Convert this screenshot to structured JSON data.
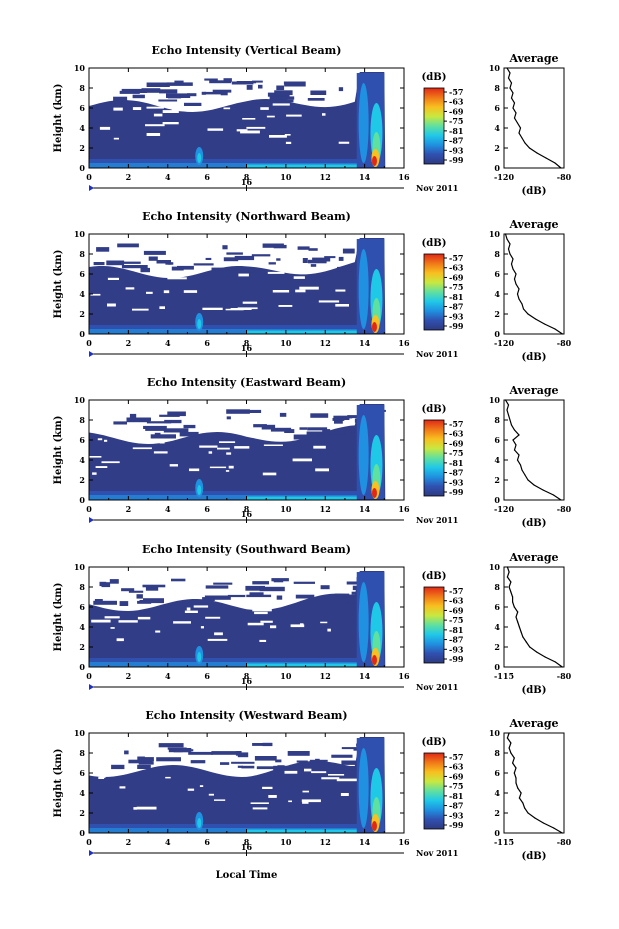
{
  "colors": {
    "background": "#313d86",
    "colorbar_stops": [
      "#2e3a80",
      "#3050b0",
      "#2090e0",
      "#20c8e8",
      "#60e0a0",
      "#c8e840",
      "#f8c020",
      "#f07818",
      "#e02818"
    ],
    "line": "#000000"
  },
  "x_ticks": [
    "0",
    "2",
    "4",
    "6",
    "8",
    "10",
    "12",
    "14",
    "16"
  ],
  "y_ticks": [
    "0",
    "2",
    "4",
    "6",
    "8",
    "10"
  ],
  "colorbar_unit": "(dB)",
  "colorbar_ticks": [
    "-57",
    "-63",
    "-69",
    "-75",
    "-81",
    "-87",
    "-93",
    "-99"
  ],
  "avg_title": "Average",
  "avg_unit": "(dB)",
  "ylabel": "Height (km)",
  "date_day": "16",
  "date_label": "Nov 2011",
  "xlabel": "Local Time",
  "chart_data": [
    {
      "type": "heatmap",
      "title": "Echo Intensity (Vertical Beam)",
      "xlim": [
        0,
        16
      ],
      "ylim": [
        0,
        10
      ],
      "avg_xlim": [
        -120,
        -80
      ],
      "avg_xticks": [
        "-120",
        "-80"
      ],
      "avg_profile": {
        "height": [
          0,
          0.5,
          1,
          1.5,
          2,
          2.5,
          3,
          3.5,
          4,
          4.5,
          5,
          5.5,
          6,
          6.5,
          7,
          7.5,
          8,
          8.5,
          9,
          9.5,
          10
        ],
        "db": [
          -82,
          -86,
          -92,
          -98,
          -103,
          -106,
          -108,
          -110,
          -109,
          -111,
          -113,
          -112,
          -114,
          -113,
          -115,
          -114,
          -116,
          -115,
          -117,
          -116,
          -118
        ]
      }
    },
    {
      "type": "heatmap",
      "title": "Echo Intensity (Northward Beam)",
      "xlim": [
        0,
        16
      ],
      "ylim": [
        0,
        10
      ],
      "avg_xlim": [
        -120,
        -80
      ],
      "avg_xticks": [
        "-120",
        "-80"
      ],
      "avg_profile": {
        "height": [
          0,
          0.5,
          1,
          1.5,
          2,
          2.5,
          3,
          3.5,
          4,
          4.5,
          5,
          5.5,
          6,
          6.5,
          7,
          7.5,
          8,
          8.5,
          9,
          9.5,
          10
        ],
        "db": [
          -81,
          -86,
          -93,
          -99,
          -104,
          -107,
          -108,
          -110,
          -111,
          -110,
          -112,
          -113,
          -112,
          -114,
          -115,
          -114,
          -116,
          -117,
          -116,
          -118,
          -119
        ]
      }
    },
    {
      "type": "heatmap",
      "title": "Echo Intensity (Eastward Beam)",
      "xlim": [
        0,
        16
      ],
      "ylim": [
        0,
        10
      ],
      "avg_xlim": [
        -120,
        -80
      ],
      "avg_xticks": [
        "-120",
        "-80"
      ],
      "avg_profile": {
        "height": [
          0,
          0.5,
          1,
          1.5,
          2,
          2.5,
          3,
          3.5,
          4,
          4.5,
          5,
          5.5,
          6,
          6.5,
          7,
          7.5,
          8,
          8.5,
          9,
          9.5,
          10
        ],
        "db": [
          -82,
          -87,
          -94,
          -100,
          -104,
          -106,
          -108,
          -109,
          -111,
          -110,
          -113,
          -112,
          -114,
          -110,
          -113,
          -115,
          -116,
          -117,
          -118,
          -117,
          -119
        ]
      }
    },
    {
      "type": "heatmap",
      "title": "Echo Intensity (Southward Beam)",
      "xlim": [
        0,
        16
      ],
      "ylim": [
        0,
        10
      ],
      "avg_xlim": [
        -115,
        -80
      ],
      "avg_xticks": [
        "-115",
        "-80"
      ],
      "avg_profile": {
        "height": [
          0,
          0.5,
          1,
          1.5,
          2,
          2.5,
          3,
          3.5,
          4,
          4.5,
          5,
          5.5,
          6,
          6.5,
          7,
          7.5,
          8,
          8.5,
          9,
          9.5,
          10
        ],
        "db": [
          -81,
          -85,
          -91,
          -96,
          -100,
          -102,
          -104,
          -105,
          -106,
          -107,
          -108,
          -107,
          -109,
          -110,
          -110,
          -111,
          -112,
          -111,
          -113,
          -112,
          -113
        ]
      }
    },
    {
      "type": "heatmap",
      "title": "Echo Intensity (Westward Beam)",
      "xlim": [
        0,
        16
      ],
      "ylim": [
        0,
        10
      ],
      "avg_xlim": [
        -115,
        -80
      ],
      "avg_xticks": [
        "-115",
        "-80"
      ],
      "avg_profile": {
        "height": [
          0,
          0.5,
          1,
          1.5,
          2,
          2.5,
          3,
          3.5,
          4,
          4.5,
          5,
          5.5,
          6,
          6.5,
          7,
          7.5,
          8,
          8.5,
          9,
          9.5,
          10
        ],
        "db": [
          -81,
          -86,
          -92,
          -97,
          -101,
          -103,
          -104,
          -106,
          -105,
          -107,
          -108,
          -108,
          -109,
          -108,
          -110,
          -109,
          -111,
          -112,
          -111,
          -113,
          -112
        ]
      }
    }
  ]
}
